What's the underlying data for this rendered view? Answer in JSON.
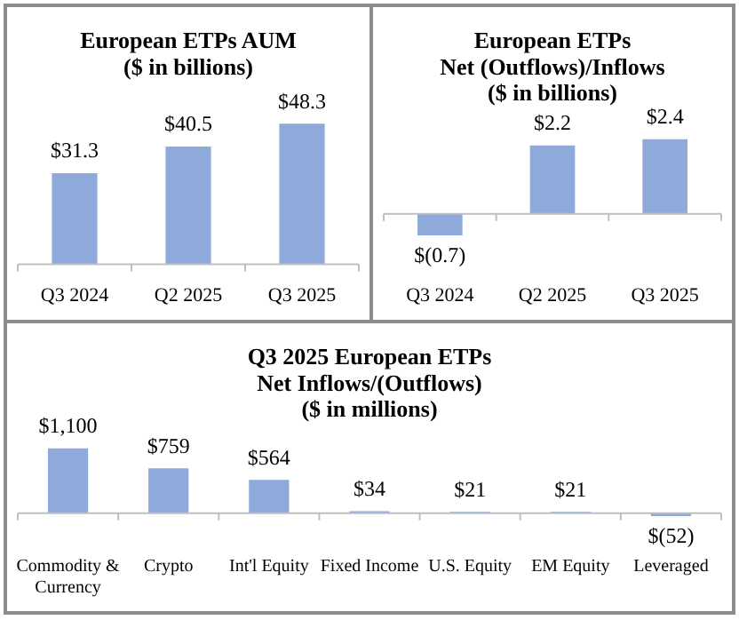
{
  "chart_data": [
    {
      "type": "bar",
      "title": "European ETPs AUM\n($ in billions)",
      "categories": [
        "Q3 2024",
        "Q2 2025",
        "Q3 2025"
      ],
      "values": [
        31.3,
        40.5,
        48.3
      ],
      "value_labels": [
        "$31.3",
        "$40.5",
        "$48.3"
      ],
      "color": "#8eaadb",
      "grid": false,
      "legend": false
    },
    {
      "type": "bar",
      "title": "European ETPs\nNet (Outflows)/Inflows\n($ in billions)",
      "categories": [
        "Q3 2024",
        "Q2 2025",
        "Q3 2025"
      ],
      "values": [
        -0.7,
        2.2,
        2.4
      ],
      "value_labels": [
        "$(0.7)",
        "$2.2",
        "$2.4"
      ],
      "color": "#8eaadb",
      "grid": false,
      "legend": false
    },
    {
      "type": "bar",
      "title": "Q3 2025 European ETPs\nNet Inflows/(Outflows)\n($ in millions)",
      "categories": [
        "Commodity & Currency",
        "Crypto",
        "Int'l Equity",
        "Fixed Income",
        "U.S. Equity",
        "EM Equity",
        "Leveraged"
      ],
      "values": [
        1100,
        759,
        564,
        34,
        21,
        21,
        -52
      ],
      "value_labels": [
        "$1,100",
        "$759",
        "$564",
        "$34",
        "$21",
        "$21",
        "$(52)"
      ],
      "color": "#8eaadb",
      "grid": false,
      "legend": false
    }
  ]
}
